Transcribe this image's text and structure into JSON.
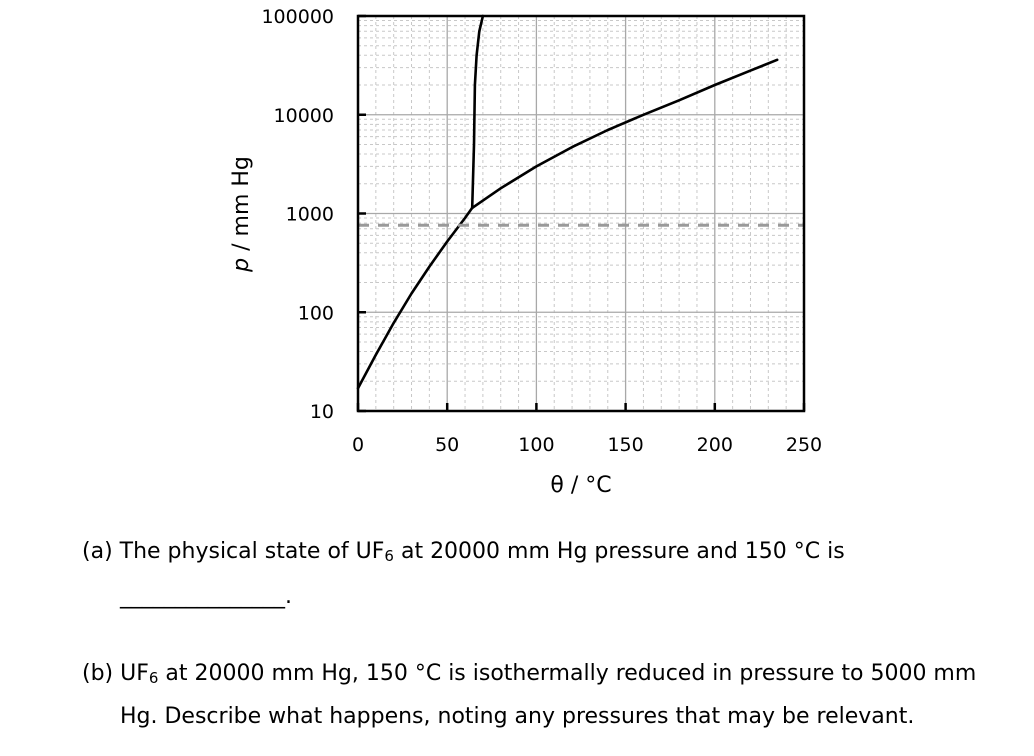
{
  "chart_data": {
    "type": "line",
    "xlabel_symbol": "θ",
    "xlabel_unit": " / °C",
    "ylabel_symbol": "p",
    "ylabel_unit": " / mm Hg",
    "xlim": [
      0,
      250
    ],
    "ylim": [
      10,
      100000
    ],
    "yscale": "log",
    "grid": true,
    "x_ticks": [
      "0",
      "50",
      "100",
      "150",
      "200",
      "250"
    ],
    "y_ticks": [
      "10",
      "100",
      "1000",
      "10000",
      "100000"
    ],
    "series": [
      {
        "style": "solid",
        "color": "#000000",
        "x": [
          0,
          10,
          20,
          30,
          40,
          50,
          60,
          64
        ],
        "y": [
          17,
          37,
          78,
          155,
          290,
          520,
          900,
          1140
        ]
      },
      {
        "style": "solid",
        "color": "#000000",
        "x": [
          64,
          80,
          100,
          120,
          140,
          160,
          180,
          200,
          220,
          235
        ],
        "y": [
          1140,
          1800,
          3000,
          4700,
          7000,
          10000,
          14000,
          20000,
          28000,
          36000
        ]
      },
      {
        "style": "solid",
        "color": "#000000",
        "x": [
          64,
          65,
          65.5,
          66.5,
          68,
          70
        ],
        "y": [
          1140,
          5000,
          20000,
          40000,
          70000,
          100000
        ]
      },
      {
        "style": "dashed",
        "color": "#9a9a9a",
        "x": [
          0,
          250
        ],
        "y": [
          760,
          760
        ]
      }
    ]
  },
  "questions": {
    "a_prefix": "(a) The physical state of UF",
    "a_sub": "6",
    "a_suffix": " at 20000 mm Hg pressure and 150 °C is",
    "a_blank": "_______________.",
    "b_prefix": "(b) UF",
    "b_sub": "6",
    "b_suffix": " at 20000 mm Hg, 150 °C is isothermally reduced in pressure to 5000 mm",
    "b_line2": "Hg.  Describe what happens, noting any pressures that may be relevant."
  }
}
